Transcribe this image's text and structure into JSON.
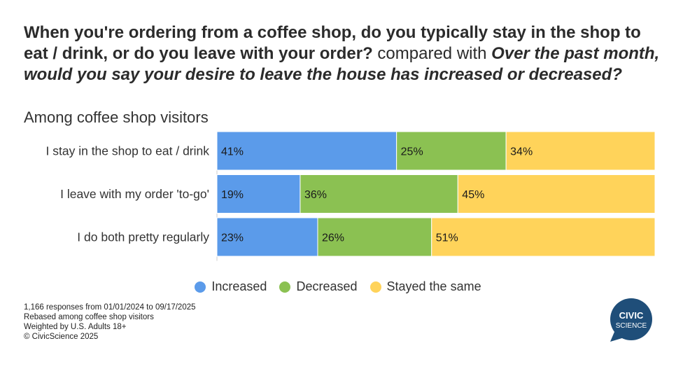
{
  "title": {
    "part1": "When you're ordering from a coffee shop, do you typically stay in the shop to eat / drink, or do you leave with your order?",
    "connector": " compared with ",
    "part2": "Over the past month, would you say your desire to leave the house has increased or decreased?"
  },
  "subtitle": "Among coffee shop visitors",
  "chart_data": {
    "type": "bar",
    "orientation": "horizontal",
    "stacked": true,
    "categories": [
      "I stay in the shop to eat / drink",
      "I leave with my order 'to-go'",
      "I do both pretty regularly"
    ],
    "series": [
      {
        "name": "Increased",
        "color": "#5b9bea",
        "values": [
          41,
          19,
          23
        ]
      },
      {
        "name": "Decreased",
        "color": "#8bc152",
        "values": [
          25,
          36,
          26
        ]
      },
      {
        "name": "Stayed the same",
        "color": "#ffd35a",
        "values": [
          34,
          45,
          51
        ]
      }
    ],
    "value_suffix": "%",
    "xlim": [
      0,
      100
    ],
    "legend_position": "bottom",
    "grid": false
  },
  "notes": [
    "1,166 responses from 01/01/2024 to 09/17/2025",
    "Rebased among coffee shop visitors",
    "Weighted by U.S. Adults 18+",
    "© CivicScience 2025"
  ],
  "logo": {
    "line1": "CIVIC",
    "line2": "SCIENCE",
    "color": "#1f4e79"
  }
}
